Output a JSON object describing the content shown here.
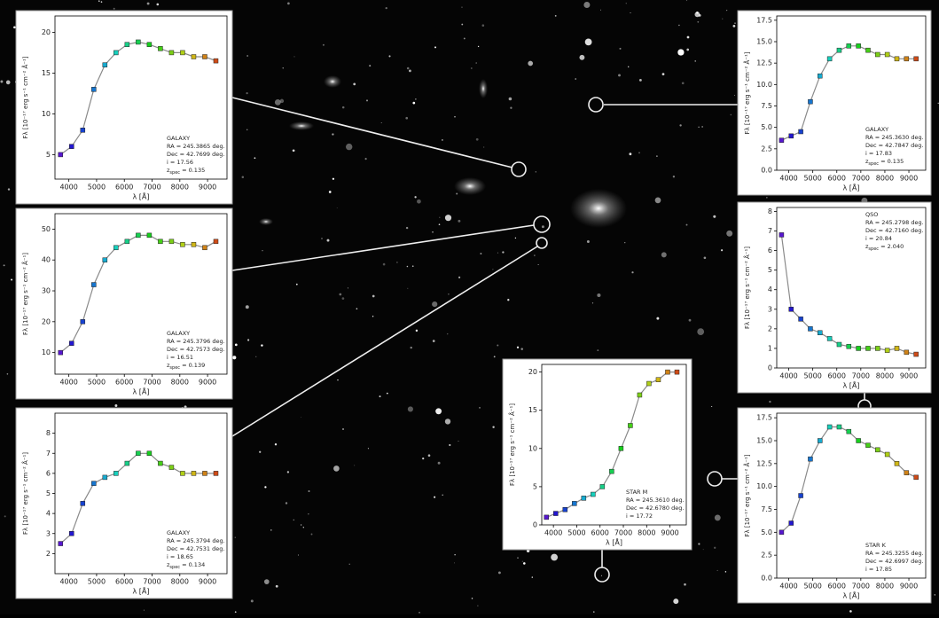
{
  "chart_data": [
    {
      "type": "line",
      "markers": true,
      "marker_cmap": "rainbow",
      "line_color": "#8a8a8a",
      "annotation_corner": "lower right",
      "xlabel": "λ [Å]",
      "ylabel": "Fλ [10⁻¹⁷ erg s⁻¹ cm⁻² Å⁻¹]",
      "x": [
        3700,
        4100,
        4500,
        4900,
        5300,
        5700,
        6100,
        6500,
        6900,
        7300,
        7700,
        8100,
        8500,
        8900,
        9300
      ],
      "values": [
        5,
        6,
        8,
        13,
        16,
        17.5,
        18.5,
        18.8,
        18.5,
        18,
        17.5,
        17.5,
        17,
        17,
        16.5
      ],
      "xlim": [
        3500,
        9700
      ],
      "xticks": [
        4000,
        5000,
        6000,
        7000,
        8000,
        9000
      ],
      "ylim": [
        2,
        22
      ],
      "yticks": [
        5,
        10,
        15,
        20
      ],
      "annotation": [
        "GALAXY",
        "RA = 245.3865 deg.",
        "Dec = 42.7699 deg.",
        "i = 17.56",
        {
          "text": "z",
          "sub": "spec",
          "rest": " = 0.135"
        }
      ]
    },
    {
      "type": "line",
      "markers": true,
      "marker_cmap": "rainbow",
      "line_color": "#8a8a8a",
      "annotation_corner": "lower right",
      "xlabel": "λ [Å]",
      "ylabel": "Fλ [10⁻¹⁷ erg s⁻¹ cm⁻² Å⁻¹]",
      "x": [
        3700,
        4100,
        4500,
        4900,
        5300,
        5700,
        6100,
        6500,
        6900,
        7300,
        7700,
        8100,
        8500,
        8900,
        9300
      ],
      "values": [
        10,
        13,
        20,
        32,
        40,
        44,
        46,
        48,
        48,
        46,
        46,
        45,
        45,
        44,
        46
      ],
      "xlim": [
        3500,
        9700
      ],
      "xticks": [
        4000,
        5000,
        6000,
        7000,
        8000,
        9000
      ],
      "ylim": [
        3,
        55
      ],
      "yticks": [
        10,
        20,
        30,
        40,
        50
      ],
      "annotation": [
        "GALAXY",
        "RA = 245.3796 deg.",
        "Dec = 42.7573 deg.",
        "i = 16.51",
        {
          "text": "z",
          "sub": "spec",
          "rest": " = 0.139"
        }
      ]
    },
    {
      "type": "line",
      "markers": true,
      "marker_cmap": "rainbow",
      "line_color": "#8a8a8a",
      "annotation_corner": "lower right",
      "xlabel": "λ [Å]",
      "ylabel": "Fλ [10⁻¹⁷ erg s⁻¹ cm⁻² Å⁻¹]",
      "x": [
        3700,
        4100,
        4500,
        4900,
        5300,
        5700,
        6100,
        6500,
        6900,
        7300,
        7700,
        8100,
        8500,
        8900,
        9300
      ],
      "values": [
        2.5,
        3,
        4.5,
        5.5,
        5.8,
        6,
        6.5,
        7,
        7,
        6.5,
        6.3,
        6,
        6,
        6,
        6
      ],
      "xlim": [
        3500,
        9700
      ],
      "xticks": [
        4000,
        5000,
        6000,
        7000,
        8000,
        9000
      ],
      "ylim": [
        1,
        9
      ],
      "yticks": [
        2,
        3,
        4,
        5,
        6,
        7,
        8
      ],
      "annotation": [
        "GALAXY",
        "RA = 245.3794 deg.",
        "Dec = 42.7531 deg.",
        "i = 18.65",
        {
          "text": "z",
          "sub": "spec",
          "rest": " = 0.134"
        }
      ]
    },
    {
      "type": "line",
      "markers": true,
      "marker_cmap": "rainbow",
      "line_color": "#8a8a8a",
      "annotation_corner": "lower right",
      "xlabel": "λ [Å]",
      "ylabel": "Fλ [10⁻¹⁷ erg s⁻¹ cm⁻² Å⁻¹]",
      "x": [
        3700,
        4100,
        4500,
        4900,
        5300,
        5700,
        6100,
        6500,
        6900,
        7300,
        7700,
        8100,
        8500,
        8900,
        9300
      ],
      "values": [
        3.5,
        4,
        4.5,
        8,
        11,
        13,
        14,
        14.5,
        14.5,
        14,
        13.5,
        13.5,
        13,
        13,
        13
      ],
      "xlim": [
        3500,
        9700
      ],
      "xticks": [
        4000,
        5000,
        6000,
        7000,
        8000,
        9000
      ],
      "ylim": [
        0,
        18
      ],
      "yticks": [
        {
          "value": 0,
          "label": "0.0"
        },
        2.5,
        {
          "value": 5,
          "label": "5.0"
        },
        7.5,
        {
          "value": 10,
          "label": "10.0"
        },
        12.5,
        {
          "value": 15,
          "label": "15.0"
        },
        17.5
      ],
      "annotation": [
        "GALAXY",
        "RA = 245.3630 deg.",
        "Dec = 42.7847 deg.",
        "i = 17.83",
        {
          "text": "z",
          "sub": "spec",
          "rest": " = 0.135"
        }
      ]
    },
    {
      "type": "line",
      "markers": true,
      "marker_cmap": "rainbow",
      "line_color": "#8a8a8a",
      "annotation_corner": "upper right",
      "xlabel": "λ [Å]",
      "ylabel": "Fλ [10⁻¹⁷ erg s⁻¹ cm⁻² Å⁻¹]",
      "x": [
        3700,
        4100,
        4500,
        4900,
        5300,
        5700,
        6100,
        6500,
        6900,
        7300,
        7700,
        8100,
        8500,
        8900,
        9300
      ],
      "values": [
        6.8,
        3,
        2.5,
        2,
        1.8,
        1.5,
        1.2,
        1.1,
        1,
        1,
        1,
        0.9,
        1,
        0.8,
        0.7
      ],
      "xlim": [
        3500,
        9700
      ],
      "xticks": [
        4000,
        5000,
        6000,
        7000,
        8000,
        9000
      ],
      "ylim": [
        0,
        8.2
      ],
      "yticks": [
        0,
        1,
        2,
        3,
        4,
        5,
        6,
        7,
        8
      ],
      "annotation": [
        "QSO",
        "RA = 245.2798 deg.",
        "Dec = 42.7160 deg.",
        "i = 20.84",
        {
          "text": "z",
          "sub": "spec",
          "rest": " = 2.040"
        }
      ]
    },
    {
      "type": "line",
      "markers": true,
      "marker_cmap": "rainbow",
      "line_color": "#8a8a8a",
      "annotation_corner": "lower right",
      "xlabel": "λ [Å]",
      "ylabel": "Fλ [10⁻¹⁷ erg s⁻¹ cm⁻² Å⁻¹]",
      "x": [
        3700,
        4100,
        4500,
        4900,
        5300,
        5700,
        6100,
        6500,
        6900,
        7300,
        7700,
        8100,
        8500,
        8900,
        9300
      ],
      "values": [
        1,
        1.5,
        2,
        2.8,
        3.5,
        4,
        5,
        7,
        10,
        13,
        17,
        18.5,
        19,
        20,
        20
      ],
      "xlim": [
        3500,
        9700
      ],
      "xticks": [
        4000,
        5000,
        6000,
        7000,
        8000,
        9000
      ],
      "ylim": [
        0,
        21
      ],
      "yticks": [
        0,
        5,
        10,
        15,
        20
      ],
      "annotation": [
        "STAR M",
        "RA = 245.3610 deg.",
        "Dec = 42.6780 deg.",
        "i = 17.72"
      ]
    },
    {
      "type": "line",
      "markers": true,
      "marker_cmap": "rainbow",
      "line_color": "#8a8a8a",
      "annotation_corner": "lower right",
      "xlabel": "λ [Å]",
      "ylabel": "Fλ [10⁻¹⁷ erg s⁻¹ cm⁻² Å⁻¹]",
      "x": [
        3700,
        4100,
        4500,
        4900,
        5300,
        5700,
        6100,
        6500,
        6900,
        7300,
        7700,
        8100,
        8500,
        8900,
        9300
      ],
      "values": [
        5,
        6,
        9,
        13,
        15,
        16.5,
        16.5,
        16,
        15,
        14.5,
        14,
        13.5,
        12.5,
        11.5,
        11
      ],
      "xlim": [
        3500,
        9700
      ],
      "xticks": [
        4000,
        5000,
        6000,
        7000,
        8000,
        9000
      ],
      "ylim": [
        0,
        18
      ],
      "yticks": [
        {
          "value": 0,
          "label": "0.0"
        },
        2.5,
        {
          "value": 5,
          "label": "5.0"
        },
        7.5,
        {
          "value": 10,
          "label": "10.0"
        },
        12.5,
        {
          "value": 15,
          "label": "15.0"
        },
        17.5
      ],
      "annotation": [
        "STAR K",
        "RA = 245.3255 deg.",
        "Dec = 42.6997 deg.",
        "i = 17.85"
      ]
    }
  ]
}
